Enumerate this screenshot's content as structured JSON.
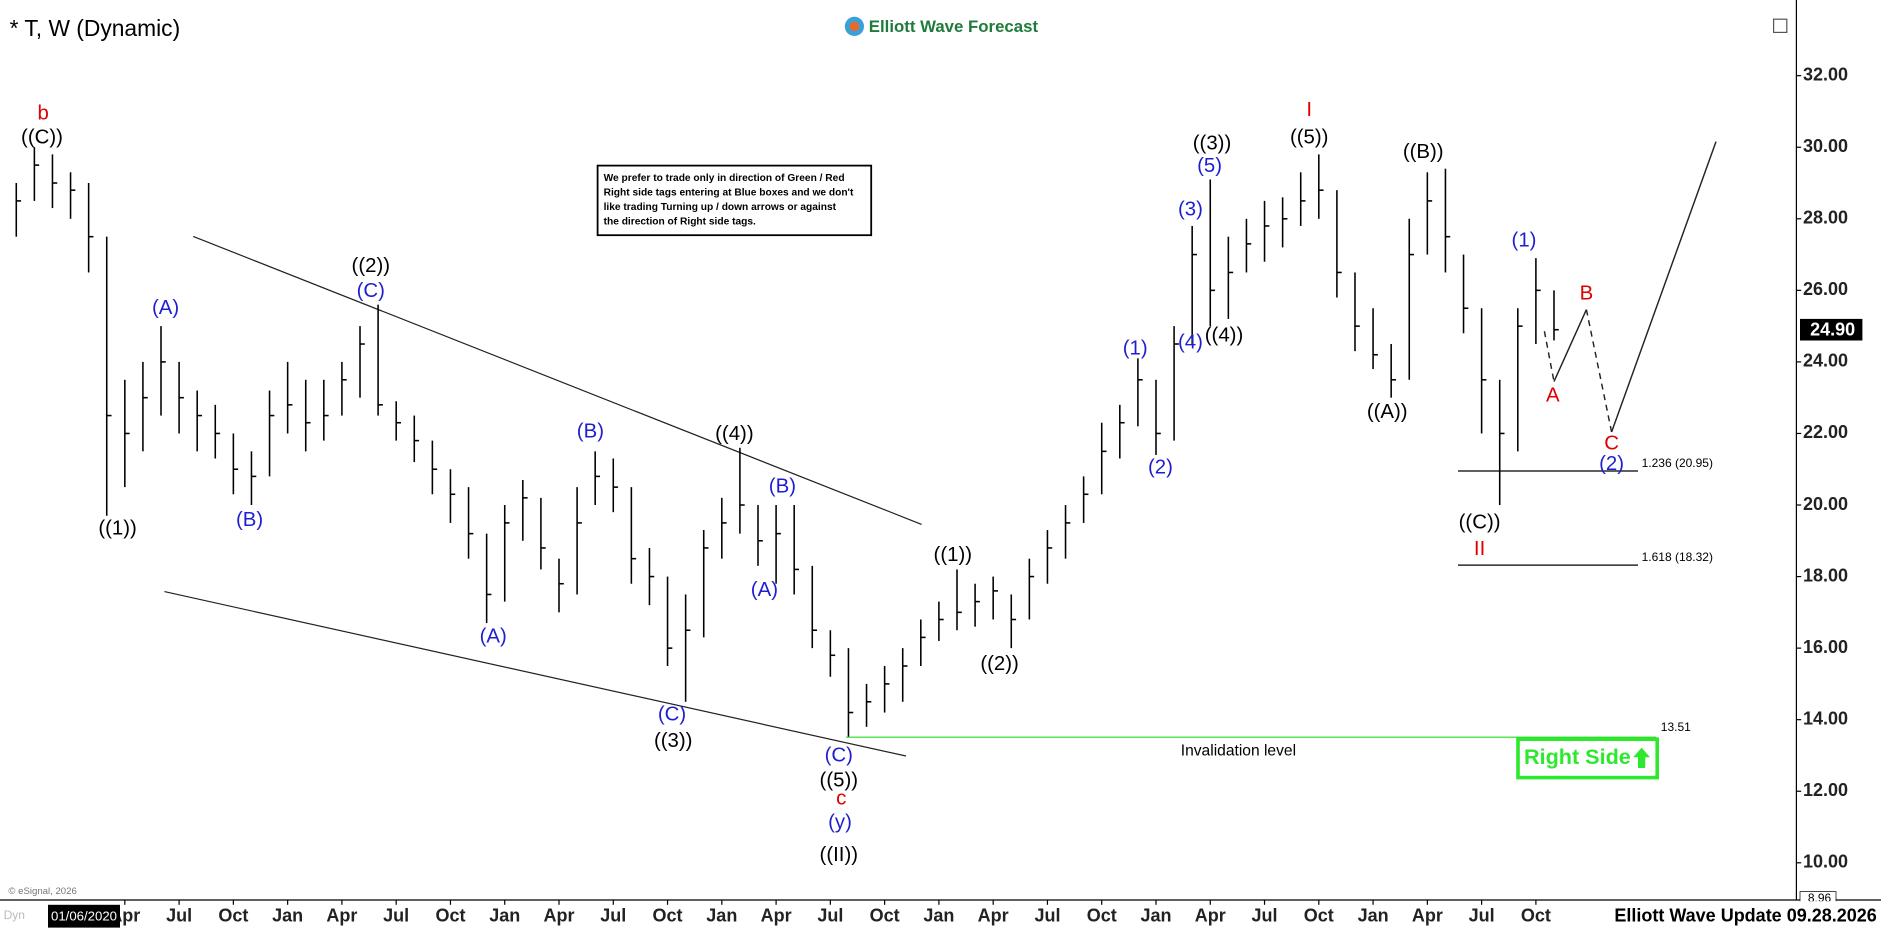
{
  "header_title": "* T, W (Dynamic)",
  "brand": "Elliott Wave Forecast",
  "footer": "Elliott Wave Update 09.28.2026",
  "copyright": "© eSignal, 2026",
  "cursor_date": "01/06/2020",
  "dyn": "Dyn",
  "note": [
    "We prefer to trade only in direction of Green / Red",
    "Right side tags entering at Blue boxes and we don't",
    "like trading Turning up / down arrows or against",
    "the direction of Right side tags."
  ],
  "right_side_tag": "Right Side",
  "chart_data": {
    "type": "ohlc",
    "color": "#000000",
    "xlim": [
      -3.9,
      95.4
    ],
    "ylim": [
      8.96,
      33.78
    ],
    "xticks": [
      {
        "value": 3,
        "label": "Apr"
      },
      {
        "value": 6,
        "label": "Jul"
      },
      {
        "value": 9,
        "label": "Oct"
      },
      {
        "value": 12,
        "label": "Jan"
      },
      {
        "value": 15,
        "label": "Apr"
      },
      {
        "value": 18,
        "label": "Jul"
      },
      {
        "value": 21,
        "label": "Oct"
      },
      {
        "value": 24,
        "label": "Jan"
      },
      {
        "value": 27,
        "label": "Apr"
      },
      {
        "value": 30,
        "label": "Jul"
      },
      {
        "value": 33,
        "label": "Oct"
      },
      {
        "value": 36,
        "label": "Jan"
      },
      {
        "value": 39,
        "label": "Apr"
      },
      {
        "value": 42,
        "label": "Jul"
      },
      {
        "value": 45,
        "label": "Oct"
      },
      {
        "value": 48,
        "label": "Jan"
      },
      {
        "value": 51,
        "label": "Apr"
      },
      {
        "value": 54,
        "label": "Jul"
      },
      {
        "value": 57,
        "label": "Oct"
      },
      {
        "value": 60,
        "label": "Jan"
      },
      {
        "value": 63,
        "label": "Apr"
      },
      {
        "value": 66,
        "label": "Jul"
      },
      {
        "value": 69,
        "label": "Oct"
      },
      {
        "value": 72,
        "label": "Jan"
      },
      {
        "value": 75,
        "label": "Apr"
      },
      {
        "value": 78,
        "label": "Jul"
      },
      {
        "value": 81,
        "label": "Oct"
      }
    ],
    "yticks": [
      {
        "value": 10,
        "label": "10.00"
      },
      {
        "value": 12,
        "label": "12.00"
      },
      {
        "value": 14,
        "label": "14.00"
      },
      {
        "value": 16,
        "label": "16.00"
      },
      {
        "value": 18,
        "label": "18.00"
      },
      {
        "value": 20,
        "label": "20.00"
      },
      {
        "value": 22,
        "label": "22.00"
      },
      {
        "value": 24,
        "label": "24.00"
      },
      {
        "value": 26,
        "label": "26.00"
      },
      {
        "value": 28,
        "label": "28.00"
      },
      {
        "value": 30,
        "label": "30.00"
      },
      {
        "value": 32,
        "label": "32.00"
      }
    ],
    "last_price": {
      "value": 24.9,
      "label": "24.90"
    },
    "low_marker": {
      "value": 8.96,
      "label": "8.96"
    },
    "levels": [
      {
        "value": 20.95,
        "label": "1.236 (20.95)",
        "color": "#000000"
      },
      {
        "value": 18.32,
        "label": "1.618 (18.32)",
        "color": "#000000"
      }
    ],
    "invalidation": {
      "value": 13.51,
      "label": "13.51",
      "text": "Invalidation level",
      "color": "#22dd22"
    },
    "series": {
      "x": [
        -3,
        -2,
        -1,
        0,
        1,
        2,
        3,
        4,
        5,
        6,
        7,
        8,
        9,
        10,
        11,
        12,
        13,
        14,
        15,
        16,
        17,
        18,
        19,
        20,
        21,
        22,
        23,
        24,
        25,
        26,
        27,
        28,
        29,
        30,
        31,
        32,
        33,
        34,
        35,
        36,
        37,
        38,
        39,
        40,
        41,
        42,
        43,
        44,
        45,
        46,
        47,
        48,
        49,
        50,
        51,
        52,
        53,
        54,
        55,
        56,
        57,
        58,
        59,
        60,
        61,
        62,
        63,
        64,
        65,
        66,
        67,
        68,
        69,
        70,
        71,
        72,
        73,
        74,
        75,
        76,
        77,
        78,
        79,
        80,
        81,
        82
      ],
      "high": [
        29.0,
        30.0,
        29.8,
        29.3,
        29.0,
        27.5,
        23.5,
        24.0,
        25.0,
        24.0,
        23.2,
        22.8,
        22.0,
        21.5,
        23.2,
        24.0,
        23.5,
        23.5,
        24.0,
        25.0,
        25.6,
        22.9,
        22.5,
        21.8,
        21.0,
        20.5,
        19.2,
        20.0,
        20.7,
        20.2,
        18.5,
        20.5,
        21.5,
        21.3,
        20.5,
        18.8,
        18.0,
        17.5,
        19.3,
        20.2,
        21.6,
        20.0,
        20.0,
        20.0,
        18.3,
        16.5,
        16.0,
        15.0,
        15.5,
        16.0,
        16.8,
        17.3,
        18.2,
        17.8,
        18.0,
        17.5,
        18.5,
        19.3,
        20.0,
        20.8,
        22.3,
        22.8,
        24.1,
        23.5,
        25.0,
        27.8,
        29.1,
        27.5,
        28.0,
        28.5,
        28.6,
        29.3,
        29.8,
        28.8,
        26.5,
        25.5,
        24.5,
        28.0,
        29.3,
        29.4,
        27.0,
        25.5,
        23.5,
        25.5,
        26.9,
        26.0
      ],
      "low": [
        27.5,
        28.5,
        28.3,
        28.0,
        26.5,
        19.7,
        20.5,
        21.5,
        22.5,
        22.0,
        21.5,
        21.3,
        20.3,
        20.0,
        20.8,
        22.0,
        21.5,
        21.8,
        22.5,
        23.0,
        22.5,
        21.8,
        21.2,
        20.3,
        19.5,
        18.5,
        16.7,
        17.3,
        19.0,
        18.2,
        17.0,
        17.5,
        20.0,
        19.8,
        17.8,
        17.2,
        15.5,
        14.5,
        16.3,
        18.5,
        19.2,
        18.3,
        17.8,
        17.5,
        16.0,
        15.2,
        13.51,
        13.8,
        14.2,
        14.5,
        15.5,
        16.2,
        16.5,
        16.6,
        16.8,
        16.0,
        16.8,
        17.8,
        18.5,
        19.5,
        20.3,
        21.3,
        22.2,
        21.4,
        21.8,
        24.5,
        25.0,
        25.2,
        26.5,
        26.8,
        27.2,
        27.8,
        28.0,
        25.8,
        24.3,
        23.8,
        23.0,
        23.5,
        27.0,
        26.5,
        24.8,
        22.0,
        20.0,
        21.5,
        24.5,
        24.6
      ],
      "close": [
        28.5,
        29.5,
        29.0,
        28.8,
        27.5,
        22.5,
        22.0,
        23.0,
        24.0,
        23.0,
        22.5,
        22.0,
        21.0,
        20.8,
        22.5,
        22.8,
        22.3,
        22.5,
        23.5,
        24.5,
        22.8,
        22.3,
        21.8,
        21.0,
        20.3,
        19.2,
        17.5,
        19.5,
        20.2,
        18.8,
        17.8,
        19.5,
        20.8,
        20.5,
        18.5,
        18.0,
        16.0,
        16.5,
        18.8,
        19.5,
        20.0,
        19.0,
        19.2,
        18.2,
        16.5,
        15.8,
        14.2,
        14.5,
        15.0,
        15.5,
        16.3,
        16.8,
        17.0,
        17.3,
        17.6,
        16.8,
        18.0,
        18.8,
        19.5,
        20.3,
        21.5,
        22.3,
        23.5,
        22.0,
        24.5,
        27.0,
        26.0,
        26.5,
        27.3,
        27.8,
        28.0,
        28.5,
        28.8,
        26.5,
        25.0,
        24.2,
        23.5,
        27.0,
        28.5,
        27.5,
        25.5,
        23.5,
        22.0,
        25.0,
        26.0,
        24.9
      ]
    },
    "wave_labels": [
      {
        "text": "b",
        "color": "#e00000"
      },
      {
        "text": "((C))",
        "color": "#000000"
      },
      {
        "text": "((1))",
        "color": "#000000"
      },
      {
        "text": "(A)",
        "color": "#1f1fd0"
      },
      {
        "text": "(B)",
        "color": "#1f1fd0"
      },
      {
        "text": "((2))",
        "color": "#000000"
      },
      {
        "text": "(C)",
        "color": "#1f1fd0"
      },
      {
        "text": "(A)",
        "color": "#1f1fd0"
      },
      {
        "text": "(B)",
        "color": "#1f1fd0"
      },
      {
        "text": "(C)",
        "color": "#1f1fd0"
      },
      {
        "text": "((3))",
        "color": "#000000"
      },
      {
        "text": "((4))",
        "color": "#000000"
      },
      {
        "text": "(A)",
        "color": "#1f1fd0"
      },
      {
        "text": "(B)",
        "color": "#1f1fd0"
      },
      {
        "text": "(C)",
        "color": "#1f1fd0"
      },
      {
        "text": "((5))",
        "color": "#000000"
      },
      {
        "text": "c",
        "color": "#e00000"
      },
      {
        "text": "(y)",
        "color": "#1f1fd0"
      },
      {
        "text": "((II))",
        "color": "#000000"
      },
      {
        "text": "((1))",
        "color": "#000000"
      },
      {
        "text": "((2))",
        "color": "#000000"
      },
      {
        "text": "(1)",
        "color": "#1f1fd0"
      },
      {
        "text": "(2)",
        "color": "#1f1fd0"
      },
      {
        "text": "(3)",
        "color": "#1f1fd0"
      },
      {
        "text": "(4)",
        "color": "#1f1fd0"
      },
      {
        "text": "(5)",
        "color": "#1f1fd0"
      },
      {
        "text": "((3))",
        "color": "#000000"
      },
      {
        "text": "((4))",
        "color": "#000000"
      },
      {
        "text": "I",
        "color": "#e00000"
      },
      {
        "text": "((5))",
        "color": "#000000"
      },
      {
        "text": "((A))",
        "color": "#000000"
      },
      {
        "text": "((B))",
        "color": "#000000"
      },
      {
        "text": "((C))",
        "color": "#000000"
      },
      {
        "text": "II",
        "color": "#e00000"
      },
      {
        "text": "(1)",
        "color": "#1f1fd0"
      },
      {
        "text": "A",
        "color": "#e00000"
      },
      {
        "text": "B",
        "color": "#e00000"
      },
      {
        "text": "C",
        "color": "#e00000"
      },
      {
        "text": "(2)",
        "color": "#1f1fd0"
      }
    ]
  }
}
